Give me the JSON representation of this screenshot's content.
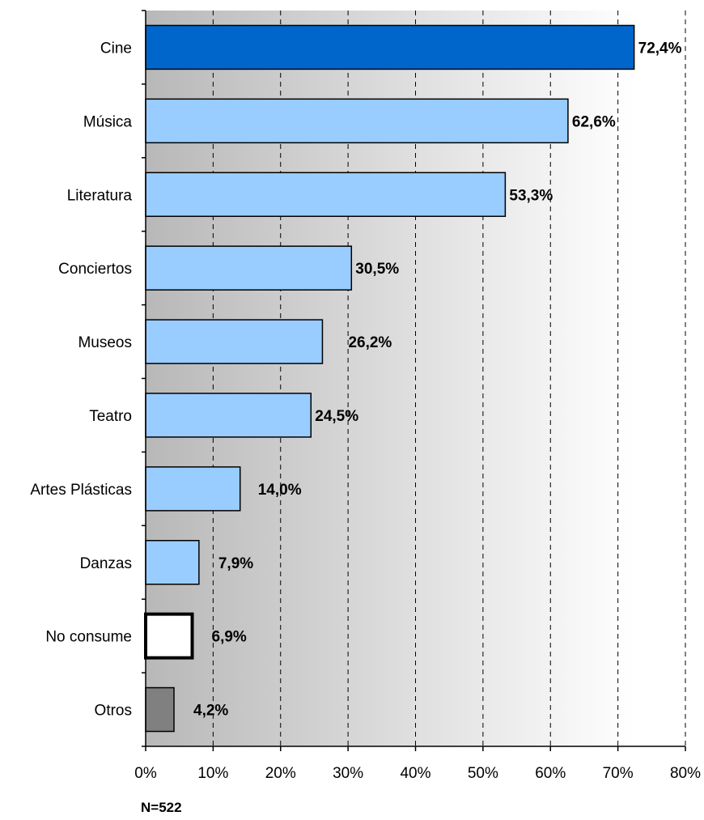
{
  "chart_data": {
    "type": "bar",
    "orientation": "horizontal",
    "categories": [
      "Cine",
      "Música",
      "Literatura",
      "Conciertos",
      "Museos",
      "Teatro",
      "Artes Plásticas",
      "Danzas",
      "No consume",
      "Otros"
    ],
    "values": [
      72.4,
      62.6,
      53.3,
      30.5,
      26.2,
      24.5,
      14.0,
      7.9,
      6.9,
      4.2
    ],
    "value_labels": [
      "72,4%",
      "62,6%",
      "53,3%",
      "30,5%",
      "26,2%",
      "24,5%",
      "14,0%",
      "7,9%",
      "6,9%",
      "4,2%"
    ],
    "bar_colors": [
      "#0066cc",
      "#99ccff",
      "#99ccff",
      "#99ccff",
      "#99ccff",
      "#99ccff",
      "#99ccff",
      "#99ccff",
      "#ffffff",
      "#808080"
    ],
    "xlim": [
      0,
      80
    ],
    "x_ticks": [
      0,
      10,
      20,
      30,
      40,
      50,
      60,
      70,
      80
    ],
    "x_tick_labels": [
      "0%",
      "10%",
      "20%",
      "30%",
      "40%",
      "50%",
      "60%",
      "70%",
      "80%"
    ],
    "grid": "vertical dashed",
    "legend": "none",
    "title": "",
    "xlabel": "",
    "ylabel": "",
    "note": "N=522"
  }
}
